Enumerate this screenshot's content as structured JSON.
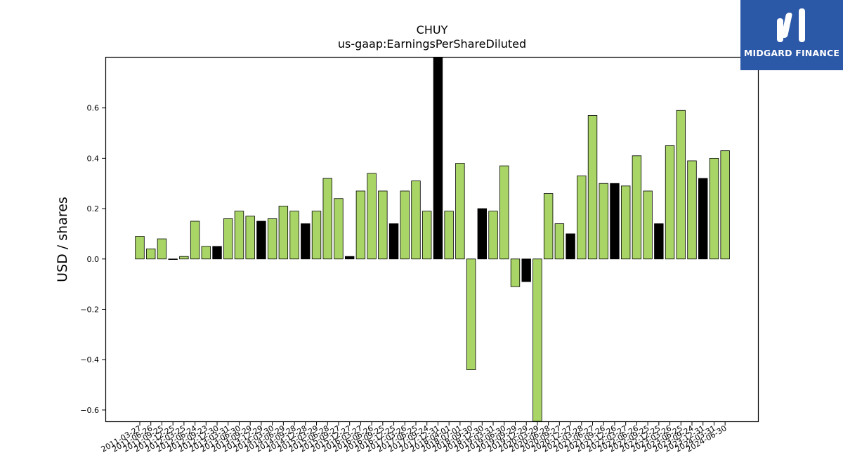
{
  "brand": {
    "name": "MIDGARD FINANCE",
    "accent_color": "#2c58a8",
    "icon": "midgard-logo-icon"
  },
  "chart_data": {
    "type": "bar",
    "title": "CHUY",
    "subtitle": "us-gaap:EarningsPerShareDiluted",
    "xlabel": "",
    "ylabel": "USD / shares",
    "ylim": [
      -0.645,
      0.8
    ],
    "yticks": [
      -0.6,
      -0.4,
      -0.2,
      0.0,
      0.2,
      0.4,
      0.6
    ],
    "ytick_labels": [
      "−0.6",
      "−0.4",
      "−0.2",
      "0.0",
      "0.2",
      "0.4",
      "0.6"
    ],
    "grid": false,
    "legend": "none",
    "colors": {
      "quarterly": "#a8d565",
      "annual": "#000000"
    },
    "categories": [
      "2011-03-27",
      "2011-06-26",
      "2011-09-25",
      "2011-12-25",
      "2012-03-25",
      "2012-06-24",
      "2012-09-23",
      "2012-12-30",
      "2013-03-31",
      "2013-06-30",
      "2013-09-29",
      "2013-12-29",
      "2014-03-30",
      "2014-06-29",
      "2014-09-28",
      "2014-12-28",
      "2015-03-29",
      "2015-06-28",
      "2015-09-27",
      "2015-12-27",
      "2016-03-27",
      "2016-06-26",
      "2016-09-25",
      "2016-12-25",
      "2017-03-26",
      "2017-06-25",
      "2017-09-24",
      "2017-12-31",
      "2018-04-01",
      "2018-07-01",
      "2018-09-30",
      "2018-12-30",
      "2019-03-31",
      "2019-06-30",
      "2019-09-29",
      "2019-12-29",
      "2020-03-29",
      "2020-06-28",
      "2020-09-27",
      "2020-12-27",
      "2021-03-28",
      "2021-06-27",
      "2021-09-26",
      "2021-12-26",
      "2022-03-27",
      "2022-06-26",
      "2022-09-25",
      "2022-12-25",
      "2023-03-26",
      "2023-06-25",
      "2023-09-24",
      "2023-12-31",
      "2024-03-31",
      "2024-06-30"
    ],
    "values": [
      0.09,
      0.04,
      0.08,
      0.0,
      0.01,
      0.15,
      0.05,
      0.05,
      0.16,
      0.19,
      0.17,
      0.15,
      0.16,
      0.21,
      0.19,
      0.14,
      0.19,
      0.32,
      0.24,
      0.01,
      0.27,
      0.34,
      0.27,
      0.14,
      0.27,
      0.31,
      0.19,
      0.8,
      0.19,
      0.38,
      -0.44,
      0.2,
      0.19,
      0.37,
      -0.11,
      -0.09,
      -0.65,
      0.26,
      0.14,
      0.1,
      0.33,
      0.57,
      0.3,
      0.3,
      0.29,
      0.41,
      0.27,
      0.14,
      0.45,
      0.59,
      0.39,
      0.32,
      0.4,
      0.43
    ],
    "annual": [
      false,
      false,
      false,
      false,
      false,
      false,
      false,
      true,
      false,
      false,
      false,
      true,
      false,
      false,
      false,
      true,
      false,
      false,
      false,
      true,
      false,
      false,
      false,
      true,
      false,
      false,
      false,
      true,
      false,
      false,
      false,
      true,
      false,
      false,
      false,
      true,
      false,
      false,
      false,
      true,
      false,
      false,
      false,
      true,
      false,
      false,
      false,
      true,
      false,
      false,
      false,
      true,
      false,
      false
    ]
  }
}
